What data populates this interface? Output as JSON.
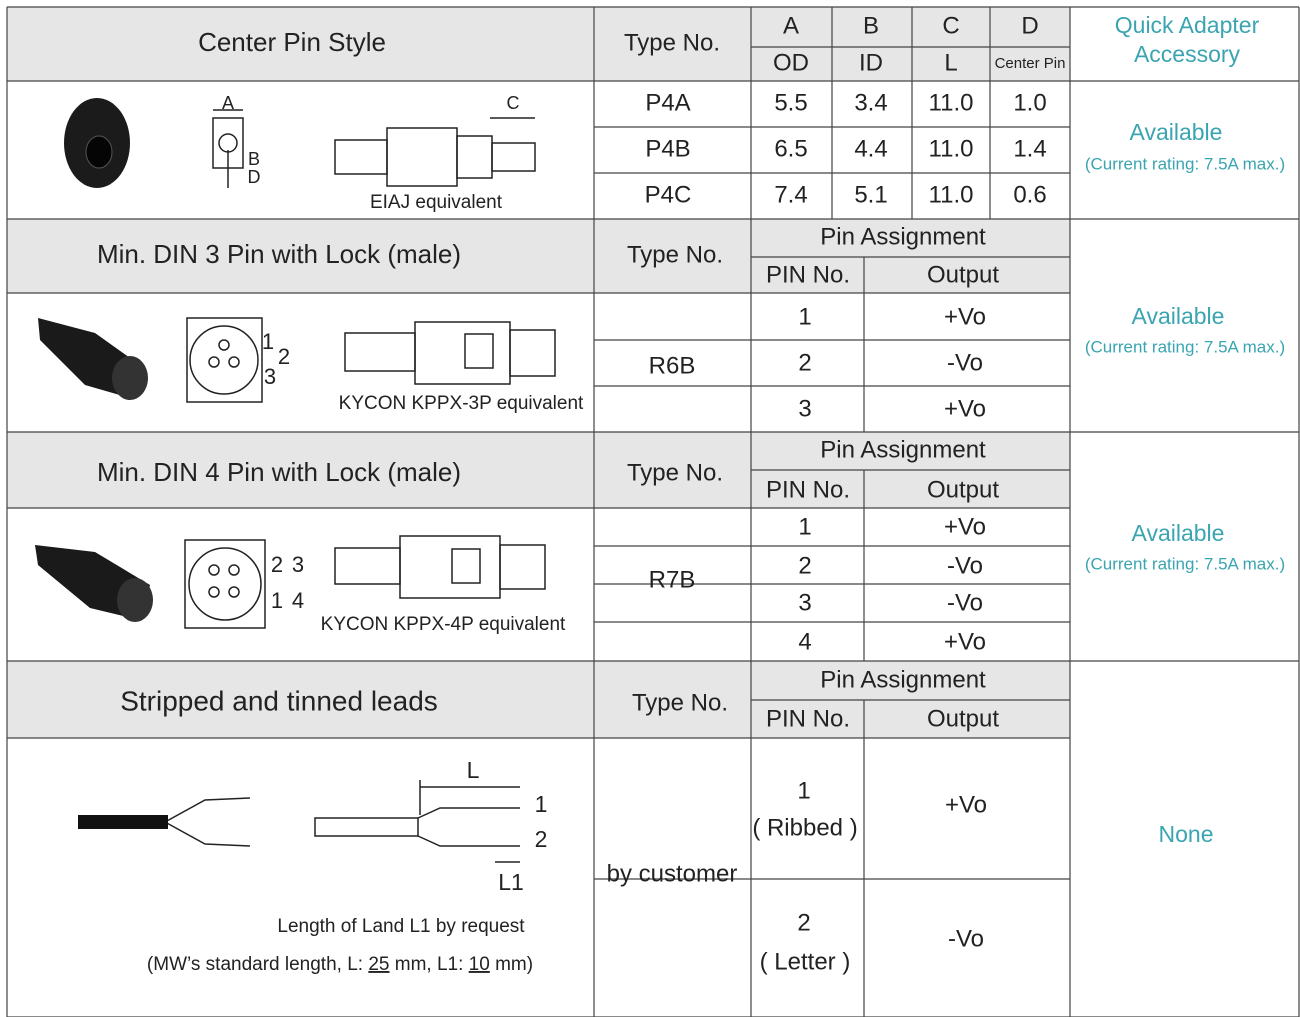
{
  "center_pin": {
    "title": "Center Pin Style",
    "type_header": "Type No.",
    "dims": [
      {
        "letter": "A",
        "name": "OD"
      },
      {
        "letter": "B",
        "name": "ID"
      },
      {
        "letter": "C",
        "name": "L"
      },
      {
        "letter": "D",
        "name": "Center Pin"
      }
    ],
    "accessory_header": [
      "Quick Adapter",
      "Accessory"
    ],
    "diagram_labels": [
      "A",
      "B",
      "D",
      "C"
    ],
    "caption": "EIAJ equivalent",
    "rows": [
      {
        "type": "P4A",
        "values": [
          "5.5",
          "3.4",
          "11.0",
          "1.0"
        ]
      },
      {
        "type": "P4B",
        "values": [
          "6.5",
          "4.4",
          "11.0",
          "1.4"
        ]
      },
      {
        "type": "P4C",
        "values": [
          "7.4",
          "5.1",
          "11.0",
          "0.6"
        ]
      }
    ],
    "accessory": {
      "status": "Available",
      "note": "(Current rating: 7.5A max.)"
    }
  },
  "din3": {
    "title": "Min. DIN 3 Pin with Lock  (male)",
    "type_header": "Type No.",
    "pin_header": "Pin Assignment",
    "pin_no_header": "PIN No.",
    "output_header": "Output",
    "diagram_labels": [
      "1",
      "2",
      "3"
    ],
    "caption": "KYCON KPPX-3P equivalent",
    "type": "R6B",
    "pins": [
      {
        "no": "1",
        "output": "+Vo"
      },
      {
        "no": "2",
        "output": "-Vo"
      },
      {
        "no": "3",
        "output": "+Vo"
      }
    ],
    "accessory": {
      "status": "Available",
      "note": "(Current rating: 7.5A max.)"
    }
  },
  "din4": {
    "title": "Min. DIN 4 Pin with Lock  (male)",
    "type_header": "Type No.",
    "pin_header": "Pin Assignment",
    "pin_no_header": "PIN No.",
    "output_header": "Output",
    "diagram_labels": [
      "2",
      "3",
      "1",
      "4"
    ],
    "caption": "KYCON KPPX-4P equivalent",
    "type": "R7B",
    "pins": [
      {
        "no": "1",
        "output": "+Vo"
      },
      {
        "no": "2",
        "output": "-Vo"
      },
      {
        "no": "3",
        "output": "-Vo"
      },
      {
        "no": "4",
        "output": "+Vo"
      }
    ],
    "accessory": {
      "status": "Available",
      "note": "(Current rating: 7.5A max.)"
    }
  },
  "leads": {
    "title": "Stripped and tinned leads",
    "type_header": "Type No.",
    "pin_header": "Pin Assignment",
    "pin_no_header": "PIN No.",
    "output_header": "Output",
    "diagram_labels": [
      "L",
      "1",
      "2",
      "L1"
    ],
    "caption": "Length of Land L1 by request",
    "note_parts": [
      "(MW’s standard length, L: ",
      "25",
      " mm,  L1: ",
      "10",
      " mm)"
    ],
    "type": "by customer",
    "pins": [
      {
        "no": "1",
        "sub": "( Ribbed )",
        "output": "+Vo"
      },
      {
        "no": "2",
        "sub": "( Letter )",
        "output": "-Vo"
      }
    ],
    "accessory": {
      "status": "None"
    }
  }
}
